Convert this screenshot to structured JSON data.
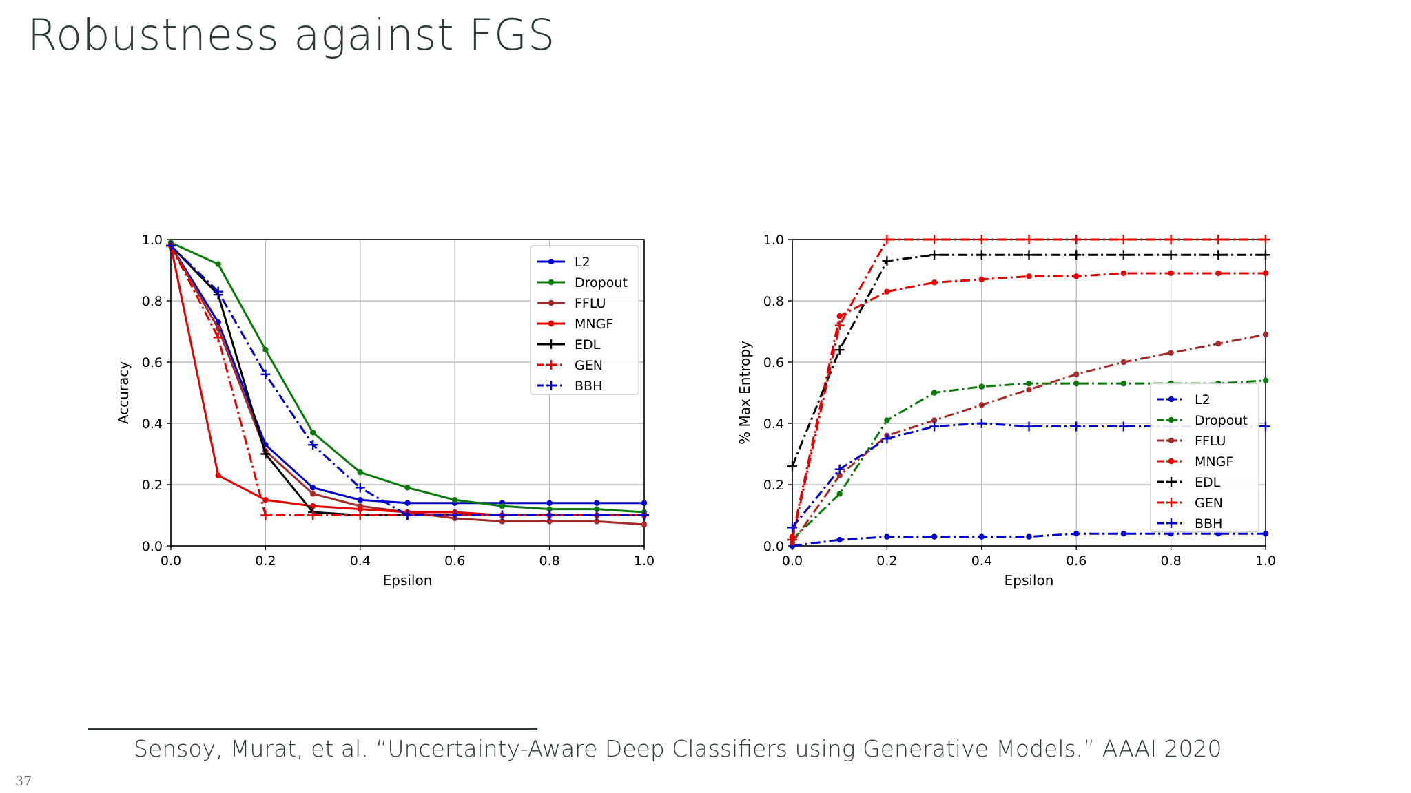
{
  "slide": {
    "title": "Robustness against FGS",
    "footnote": "Sensoy, Murat, et al. “Uncertainty-Aware Deep Classifiers using Generative Models.” AAAI 2020",
    "page_number": "37"
  },
  "chart_data": [
    {
      "type": "line",
      "xlabel": "Epsilon",
      "ylabel": "Accuracy",
      "xlim": [
        0.0,
        1.0
      ],
      "ylim": [
        0.0,
        1.0
      ],
      "xticks": [
        "0.0",
        "0.2",
        "0.4",
        "0.6",
        "0.8",
        "1.0"
      ],
      "yticks": [
        "0.0",
        "0.2",
        "0.4",
        "0.6",
        "0.8",
        "1.0"
      ],
      "grid": true,
      "legend_position": "top-right",
      "x": [
        0.0,
        0.1,
        0.2,
        0.3,
        0.4,
        0.5,
        0.6,
        0.7,
        0.8,
        0.9,
        1.0
      ],
      "series": [
        {
          "name": "L2",
          "color": "#0000cc",
          "line": "solid",
          "marker": "dot",
          "values": [
            0.98,
            0.73,
            0.33,
            0.19,
            0.15,
            0.14,
            0.14,
            0.14,
            0.14,
            0.14,
            0.14
          ]
        },
        {
          "name": "Dropout",
          "color": "#0a7a0a",
          "line": "solid",
          "marker": "dot",
          "values": [
            0.99,
            0.92,
            0.64,
            0.37,
            0.24,
            0.19,
            0.15,
            0.13,
            0.12,
            0.12,
            0.11
          ]
        },
        {
          "name": "FFLU",
          "color": "#a52a2a",
          "line": "solid",
          "marker": "dot",
          "values": [
            0.98,
            0.71,
            0.31,
            0.17,
            0.13,
            0.11,
            0.09,
            0.08,
            0.08,
            0.08,
            0.07
          ]
        },
        {
          "name": "MNGF",
          "color": "#e60000",
          "line": "solid",
          "marker": "dot",
          "values": [
            0.98,
            0.23,
            0.15,
            0.13,
            0.12,
            0.11,
            0.11,
            0.1,
            0.1,
            0.1,
            0.1
          ]
        },
        {
          "name": "EDL",
          "color": "#000000",
          "line": "solid",
          "marker": "plus",
          "values": [
            0.98,
            0.82,
            0.3,
            0.11,
            0.1,
            0.1,
            0.1,
            0.1,
            0.1,
            0.1,
            0.1
          ]
        },
        {
          "name": "GEN",
          "color": "#e60000",
          "line": "dashdot",
          "marker": "plus",
          "values": [
            0.98,
            0.68,
            0.1,
            0.1,
            0.1,
            0.1,
            0.1,
            0.1,
            0.1,
            0.1,
            0.1
          ]
        },
        {
          "name": "BBH",
          "color": "#0000cc",
          "line": "dashdot",
          "marker": "plus",
          "values": [
            0.98,
            0.83,
            0.56,
            0.33,
            0.19,
            0.1,
            0.1,
            0.1,
            0.1,
            0.1,
            0.1
          ]
        }
      ]
    },
    {
      "type": "line",
      "xlabel": "Epsilon",
      "ylabel": "% Max Entropy",
      "xlim": [
        0.0,
        1.0
      ],
      "ylim": [
        0.0,
        1.0
      ],
      "xticks": [
        "0.0",
        "0.2",
        "0.4",
        "0.6",
        "0.8",
        "1.0"
      ],
      "yticks": [
        "0.0",
        "0.2",
        "0.4",
        "0.6",
        "0.8",
        "1.0"
      ],
      "grid": true,
      "legend_position": "center-right",
      "x": [
        0.0,
        0.1,
        0.2,
        0.3,
        0.4,
        0.5,
        0.6,
        0.7,
        0.8,
        0.9,
        1.0
      ],
      "series": [
        {
          "name": "L2",
          "color": "#0000cc",
          "line": "dashdot",
          "marker": "dot",
          "values": [
            0.0,
            0.02,
            0.03,
            0.03,
            0.03,
            0.03,
            0.04,
            0.04,
            0.04,
            0.04,
            0.04
          ]
        },
        {
          "name": "Dropout",
          "color": "#0a7a0a",
          "line": "dashdot",
          "marker": "dot",
          "values": [
            0.02,
            0.17,
            0.41,
            0.5,
            0.52,
            0.53,
            0.53,
            0.53,
            0.53,
            0.53,
            0.54
          ]
        },
        {
          "name": "FFLU",
          "color": "#a52a2a",
          "line": "dashdot",
          "marker": "dot",
          "values": [
            0.01,
            0.23,
            0.36,
            0.41,
            0.46,
            0.51,
            0.56,
            0.6,
            0.63,
            0.66,
            0.69
          ]
        },
        {
          "name": "MNGF",
          "color": "#e60000",
          "line": "dashdot",
          "marker": "dot",
          "values": [
            0.03,
            0.75,
            0.83,
            0.86,
            0.87,
            0.88,
            0.88,
            0.89,
            0.89,
            0.89,
            0.89
          ]
        },
        {
          "name": "EDL",
          "color": "#000000",
          "line": "dashdot",
          "marker": "plus",
          "values": [
            0.26,
            0.64,
            0.93,
            0.95,
            0.95,
            0.95,
            0.95,
            0.95,
            0.95,
            0.95,
            0.95
          ]
        },
        {
          "name": "GEN",
          "color": "#e60000",
          "line": "dashdot",
          "marker": "plus",
          "values": [
            0.02,
            0.72,
            1.0,
            1.0,
            1.0,
            1.0,
            1.0,
            1.0,
            1.0,
            1.0,
            1.0
          ]
        },
        {
          "name": "BBH",
          "color": "#0000cc",
          "line": "dashdot",
          "marker": "plus",
          "values": [
            0.06,
            0.25,
            0.35,
            0.39,
            0.4,
            0.39,
            0.39,
            0.39,
            0.39,
            0.39,
            0.39
          ]
        }
      ]
    }
  ]
}
